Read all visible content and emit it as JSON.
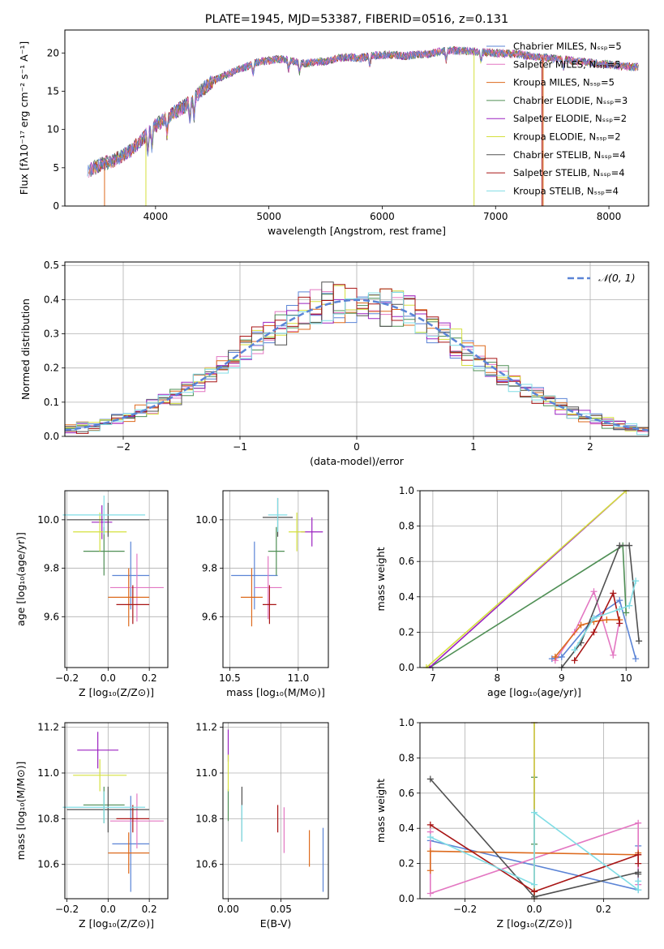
{
  "colors": {
    "chabrier_miles": "#5b84d6",
    "salpeter_miles": "#e377c2",
    "kroupa_miles": "#dd6a1d",
    "chabrier_elodie": "#4f8f55",
    "salpeter_elodie": "#9b22c0",
    "kroupa_elodie": "#d5e03d",
    "chabrier_stelib": "#505050",
    "salpeter_stelib": "#a81515",
    "kroupa_stelib": "#80dde5"
  },
  "chart_data": [
    {
      "id": "spectrum",
      "type": "line",
      "title": "PLATE=1945, MJD=53387, FIBERID=0516, z=0.131",
      "xlabel": "wavelength [Angstrom, rest frame]",
      "ylabel": "Flux [fλ10⁻¹⁷ erg cm⁻² s⁻¹ A⁻¹]",
      "xlim": [
        3200,
        8350
      ],
      "ylim": [
        0,
        23
      ],
      "xticks": [
        "4000",
        "5000",
        "6000",
        "7000",
        "8000"
      ],
      "yticks": [
        "0",
        "5",
        "10",
        "15",
        "20"
      ],
      "grid": false,
      "legend_position": "right",
      "legend": [
        "Chabrier MILES, Nₛₛₚ=5",
        "Salpeter MILES, Nₛₛₚ=5",
        "Kroupa MILES, Nₛₛₚ=5",
        "Chabrier ELODIE, Nₛₛₚ=3",
        "Salpeter ELODIE, Nₛₛₚ=2",
        "Kroupa ELODIE, Nₛₛₚ=2",
        "Chabrier STELIB, Nₛₛₚ=4",
        "Salpeter STELIB, Nₛₛₚ=4",
        "Kroupa STELIB, Nₛₛₚ=4"
      ],
      "continuum": {
        "x": [
          3400,
          3500,
          3600,
          3700,
          3800,
          3900,
          4000,
          4100,
          4200,
          4300,
          4400,
          4500,
          4600,
          4700,
          4800,
          4900,
          5000,
          5100,
          5200,
          5300,
          5400,
          5500,
          5600,
          5700,
          5800,
          5900,
          6000,
          6100,
          6200,
          6300,
          6400,
          6500,
          6600,
          6700,
          6800,
          6900,
          7000,
          7100,
          7200,
          7300,
          7400,
          7500,
          7600,
          7700,
          7800,
          7900,
          8000,
          8100,
          8200
        ],
        "y": [
          4.5,
          5.3,
          5.8,
          6.5,
          7.5,
          9,
          10.5,
          11.5,
          12.5,
          13.5,
          15,
          16.3,
          17,
          17.6,
          18.2,
          18.8,
          19,
          19.2,
          19,
          18.6,
          18.8,
          18.9,
          19.3,
          19.5,
          19.3,
          19.6,
          19.7,
          19.8,
          19.6,
          19.8,
          19.8,
          20.2,
          20.3,
          20.3,
          20.2,
          20.1,
          20,
          19.9,
          19.9,
          19.6,
          19.4,
          19.3,
          19.2,
          18.9,
          18.8,
          18.6,
          18.5,
          18.3,
          18.2
        ]
      }
    },
    {
      "id": "residuals",
      "type": "area",
      "xlabel": "(data-model)/error",
      "ylabel": "Normed distribution",
      "xlim": [
        -2.5,
        2.5
      ],
      "ylim": [
        0,
        0.51
      ],
      "xticks": [
        "−2",
        "−1",
        "0",
        "1",
        "2"
      ],
      "yticks": [
        "0.0",
        "0.1",
        "0.2",
        "0.3",
        "0.4",
        "0.5"
      ],
      "grid": true,
      "legend_position": "top-right",
      "legend": [
        "𝒩(0, 1)"
      ],
      "bin_width": 0.1,
      "gaussian": {
        "mean": 0,
        "sigma": 1
      }
    },
    {
      "id": "age_vs_Z",
      "type": "scatter",
      "xlabel": "Z [log₁₀(Z/Z⊙)]",
      "ylabel": "age  [log₁₀(age/yr)]",
      "xlim": [
        -0.21,
        0.29
      ],
      "ylim": [
        9.39,
        10.12
      ],
      "xticks": [
        "−0.2",
        "0.0",
        "0.2"
      ],
      "yticks": [
        "9.6",
        "9.8",
        "10.0"
      ],
      "grid": true,
      "points": [
        {
          "model": "chabrier_miles",
          "x": 0.11,
          "xerr": 0.09,
          "y": 9.77,
          "yerr": 0.14
        },
        {
          "model": "salpeter_miles",
          "x": 0.14,
          "xerr": 0.13,
          "y": 9.72,
          "yerr": 0.14
        },
        {
          "model": "kroupa_miles",
          "x": 0.1,
          "xerr": 0.1,
          "y": 9.68,
          "yerr": 0.12
        },
        {
          "model": "chabrier_elodie",
          "x": -0.02,
          "xerr": 0.1,
          "y": 9.87,
          "yerr": 0.1
        },
        {
          "model": "salpeter_elodie",
          "x": -0.03,
          "xerr": 0.05,
          "y": 9.99,
          "yerr": 0.07
        },
        {
          "model": "kroupa_elodie",
          "x": -0.04,
          "xerr": 0.13,
          "y": 9.95,
          "yerr": 0.08
        },
        {
          "model": "chabrier_stelib",
          "x": 0.0,
          "xerr": 0.2,
          "y": 10.0,
          "yerr": 0.07
        },
        {
          "model": "salpeter_stelib",
          "x": 0.12,
          "xerr": 0.08,
          "y": 9.65,
          "yerr": 0.08
        },
        {
          "model": "kroupa_stelib",
          "x": -0.02,
          "xerr": 0.2,
          "y": 10.02,
          "yerr": 0.08
        }
      ]
    },
    {
      "id": "age_vs_mass",
      "type": "scatter",
      "xlabel": "mass [log₁₀(M/M⊙)]",
      "xlim": [
        10.45,
        11.22
      ],
      "ylim": [
        9.39,
        10.12
      ],
      "xticks": [
        "10.5",
        "11.0"
      ],
      "yticks": [
        "9.6",
        "9.8",
        "10.0"
      ],
      "grid": true,
      "points": [
        {
          "model": "chabrier_miles",
          "x": 10.68,
          "xerr": 0.17,
          "y": 9.77,
          "yerr": 0.14
        },
        {
          "model": "salpeter_miles",
          "x": 10.78,
          "xerr": 0.1,
          "y": 9.72,
          "yerr": 0.13
        },
        {
          "model": "kroupa_miles",
          "x": 10.66,
          "xerr": 0.08,
          "y": 9.68,
          "yerr": 0.12
        },
        {
          "model": "chabrier_elodie",
          "x": 10.84,
          "xerr": 0.06,
          "y": 9.87,
          "yerr": 0.1
        },
        {
          "model": "salpeter_elodie",
          "x": 11.1,
          "xerr": 0.08,
          "y": 9.95,
          "yerr": 0.06
        },
        {
          "model": "kroupa_elodie",
          "x": 10.99,
          "xerr": 0.06,
          "y": 9.95,
          "yerr": 0.08
        },
        {
          "model": "chabrier_stelib",
          "x": 10.85,
          "xerr": 0.11,
          "y": 10.01,
          "yerr": 0.08
        },
        {
          "model": "salpeter_stelib",
          "x": 10.79,
          "xerr": 0.05,
          "y": 9.65,
          "yerr": 0.08
        },
        {
          "model": "kroupa_stelib",
          "x": 10.85,
          "xerr": 0.07,
          "y": 10.02,
          "yerr": 0.07
        }
      ]
    },
    {
      "id": "weight_vs_age",
      "type": "line",
      "xlabel": "age  [log₁₀(age/yr)]",
      "ylabel": "mass weight",
      "xlim": [
        6.8,
        10.35
      ],
      "ylim": [
        0,
        1
      ],
      "xticks": [
        "7",
        "8",
        "9",
        "10"
      ],
      "yticks": [
        "0.0",
        "0.2",
        "0.4",
        "0.6",
        "0.8",
        "1.0"
      ],
      "grid": true,
      "series": [
        {
          "model": "chabrier_miles",
          "x": [
            8.85,
            9.0,
            9.5,
            9.9,
            10.15
          ],
          "y": [
            0.05,
            0.06,
            0.28,
            0.38,
            0.05
          ]
        },
        {
          "model": "salpeter_miles",
          "x": [
            8.9,
            9.2,
            9.5,
            9.8,
            9.9
          ],
          "y": [
            0.04,
            0.2,
            0.43,
            0.07,
            0.27
          ]
        },
        {
          "model": "kroupa_miles",
          "x": [
            8.9,
            9.3,
            9.5,
            9.7,
            9.9
          ],
          "y": [
            0.06,
            0.24,
            0.26,
            0.27,
            0.27
          ]
        },
        {
          "model": "chabrier_elodie",
          "x": [
            6.95,
            9.95,
            10.0
          ],
          "y": [
            0.0,
            0.69,
            0.31
          ]
        },
        {
          "model": "salpeter_elodie",
          "x": [
            6.95,
            10.0
          ],
          "y": [
            0.0,
            1.0
          ]
        },
        {
          "model": "kroupa_elodie",
          "x": [
            6.9,
            10.0
          ],
          "y": [
            0.0,
            1.0
          ]
        },
        {
          "model": "chabrier_stelib",
          "x": [
            9.0,
            9.3,
            9.9,
            10.05,
            10.2
          ],
          "y": [
            0.0,
            0.14,
            0.69,
            0.69,
            0.15
          ]
        },
        {
          "model": "salpeter_stelib",
          "x": [
            9.2,
            9.5,
            9.8,
            9.9
          ],
          "y": [
            0.04,
            0.2,
            0.42,
            0.25
          ]
        },
        {
          "model": "kroupa_stelib",
          "x": [
            9.2,
            9.5,
            9.9,
            10.05,
            10.15
          ],
          "y": [
            0.1,
            0.28,
            0.33,
            0.35,
            0.49
          ]
        }
      ]
    },
    {
      "id": "mass_vs_Z",
      "type": "scatter",
      "xlabel": "Z [log₁₀(Z/Z⊙)]",
      "ylabel": "mass [log₁₀(M/M⊙)]",
      "xlim": [
        -0.21,
        0.29
      ],
      "ylim": [
        10.45,
        11.22
      ],
      "xticks": [
        "−0.2",
        "0.0",
        "0.2"
      ],
      "yticks": [
        "10.6",
        "10.8",
        "11.0",
        "11.2"
      ],
      "grid": true,
      "points": [
        {
          "model": "chabrier_miles",
          "x": 0.11,
          "xerr": 0.09,
          "y": 10.69,
          "yerr": 0.21
        },
        {
          "model": "salpeter_miles",
          "x": 0.14,
          "xerr": 0.13,
          "y": 10.79,
          "yerr": 0.12
        },
        {
          "model": "kroupa_miles",
          "x": 0.1,
          "xerr": 0.1,
          "y": 10.65,
          "yerr": 0.09
        },
        {
          "model": "chabrier_elodie",
          "x": -0.02,
          "xerr": 0.1,
          "y": 10.86,
          "yerr": 0.08
        },
        {
          "model": "salpeter_elodie",
          "x": -0.05,
          "xerr": 0.1,
          "y": 11.1,
          "yerr": 0.08
        },
        {
          "model": "kroupa_elodie",
          "x": -0.04,
          "xerr": 0.13,
          "y": 10.99,
          "yerr": 0.07
        },
        {
          "model": "chabrier_stelib",
          "x": 0.0,
          "xerr": 0.2,
          "y": 10.84,
          "yerr": 0.1
        },
        {
          "model": "salpeter_stelib",
          "x": 0.12,
          "xerr": 0.08,
          "y": 10.8,
          "yerr": 0.06
        },
        {
          "model": "kroupa_stelib",
          "x": -0.02,
          "xerr": 0.2,
          "y": 10.85,
          "yerr": 0.07
        }
      ]
    },
    {
      "id": "mass_vs_ebv",
      "type": "scatter",
      "xlabel": "E(B-V)",
      "xlim": [
        -0.005,
        0.095
      ],
      "ylim": [
        10.45,
        11.22
      ],
      "xticks": [
        "0.00",
        "0.05"
      ],
      "yticks": [
        "10.6",
        "10.8",
        "11.0",
        "11.2"
      ],
      "grid": true,
      "points": [
        {
          "model": "chabrier_miles",
          "x": 0.09,
          "y": 10.62,
          "yerr": 0.14
        },
        {
          "model": "salpeter_miles",
          "x": 0.053,
          "y": 10.75,
          "yerr": 0.1
        },
        {
          "model": "kroupa_miles",
          "x": 0.077,
          "y": 10.67,
          "yerr": 0.08
        },
        {
          "model": "chabrier_elodie",
          "x": 0.0,
          "y": 10.86,
          "yerr": 0.07
        },
        {
          "model": "salpeter_elodie",
          "x": 0.0,
          "y": 11.12,
          "yerr": 0.07
        },
        {
          "model": "kroupa_elodie",
          "x": 0.0,
          "y": 11.0,
          "yerr": 0.08
        },
        {
          "model": "chabrier_stelib",
          "x": 0.013,
          "y": 10.82,
          "yerr": 0.12
        },
        {
          "model": "salpeter_stelib",
          "x": 0.047,
          "y": 10.8,
          "yerr": 0.06
        },
        {
          "model": "kroupa_stelib",
          "x": 0.013,
          "y": 10.78,
          "yerr": 0.08
        }
      ]
    },
    {
      "id": "weight_vs_Z",
      "type": "line",
      "xlabel": "Z [log₁₀(Z/Z⊙)]",
      "ylabel": "mass weight",
      "xlim": [
        -0.33,
        0.33
      ],
      "ylim": [
        0,
        1
      ],
      "xticks": [
        "−0.2",
        "0.0",
        "0.2"
      ],
      "yticks": [
        "0.0",
        "0.2",
        "0.4",
        "0.6",
        "0.8",
        "1.0"
      ],
      "grid": true,
      "series": [
        {
          "model": "chabrier_miles",
          "x": [
            -0.3,
            0.3,
            0.3
          ],
          "y": [
            0.33,
            0.05,
            0.3
          ]
        },
        {
          "model": "salpeter_miles",
          "x": [
            -0.3,
            -0.3,
            0.3,
            0.3
          ],
          "y": [
            0.38,
            0.03,
            0.43,
            0.08
          ]
        },
        {
          "model": "kroupa_miles",
          "x": [
            -0.3,
            -0.3,
            0.3,
            0.3
          ],
          "y": [
            0.16,
            0.27,
            0.25,
            0.26
          ]
        },
        {
          "model": "chabrier_elodie",
          "x": [
            0.0,
            0.0
          ],
          "y": [
            0.69,
            0.31
          ]
        },
        {
          "model": "salpeter_elodie",
          "x": [
            0.0,
            0.0
          ],
          "y": [
            1.0,
            0.0
          ]
        },
        {
          "model": "kroupa_elodie",
          "x": [
            0.0,
            0.0
          ],
          "y": [
            1.0,
            0.0
          ]
        },
        {
          "model": "chabrier_stelib",
          "x": [
            -0.3,
            0.0,
            0.3,
            0.3
          ],
          "y": [
            0.68,
            0.01,
            0.15,
            0.14
          ]
        },
        {
          "model": "salpeter_stelib",
          "x": [
            -0.3,
            0.0,
            0.3,
            0.3
          ],
          "y": [
            0.42,
            0.04,
            0.25,
            0.2
          ]
        },
        {
          "model": "kroupa_stelib",
          "x": [
            -0.3,
            0.0,
            0.0,
            0.3,
            0.3
          ],
          "y": [
            0.35,
            0.08,
            0.49,
            0.05,
            0.1
          ]
        }
      ]
    }
  ]
}
